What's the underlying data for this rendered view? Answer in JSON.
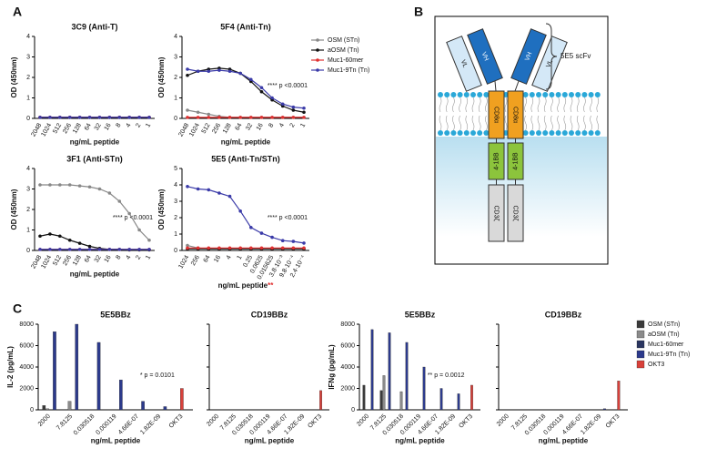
{
  "panels": {
    "a": "A",
    "b": "B",
    "c": "C"
  },
  "diagram": {
    "scfv": "5E5 scFv",
    "vh": "VH",
    "vl": "VL",
    "cd8": "CD8α",
    "bb": "4-1BB",
    "cd3": "CD3ζ"
  },
  "chart_data": [
    {
      "type": "line",
      "title": "3C9 (Anti-T)",
      "ylabel": "OD (450nm)",
      "xlabel": "ng/mL peptide",
      "categories": [
        "2048",
        "1024",
        "512",
        "256",
        "128",
        "64",
        "32",
        "16",
        "8",
        "4",
        "2",
        "1"
      ],
      "ylim": [
        0,
        4
      ],
      "yticks": [
        0,
        1,
        2,
        3,
        4
      ],
      "legend": false,
      "series": [
        {
          "name": "OSM (STn)",
          "color": "#888888",
          "values": [
            0.05,
            0.05,
            0.05,
            0.05,
            0.05,
            0.05,
            0.05,
            0.05,
            0.05,
            0.05,
            0.05,
            0.05
          ]
        },
        {
          "name": "aOSM (Tn)",
          "color": "#111111",
          "values": [
            0.05,
            0.05,
            0.05,
            0.05,
            0.05,
            0.05,
            0.05,
            0.05,
            0.05,
            0.05,
            0.05,
            0.05
          ]
        },
        {
          "name": "Muc1-60mer",
          "color": "#e03030",
          "values": [
            0.05,
            0.05,
            0.05,
            0.05,
            0.05,
            0.05,
            0.05,
            0.05,
            0.05,
            0.05,
            0.05,
            0.05
          ]
        },
        {
          "name": "Muc1-9Tn (Tn)",
          "color": "#3a3aa8",
          "values": [
            0.05,
            0.05,
            0.05,
            0.05,
            0.05,
            0.05,
            0.05,
            0.05,
            0.05,
            0.05,
            0.05,
            0.05
          ]
        }
      ]
    },
    {
      "type": "line",
      "title": "5F4 (Anti-Tn)",
      "ylabel": "OD (450nm)",
      "xlabel": "ng/mL peptide",
      "categories": [
        "2048",
        "1024",
        "512",
        "256",
        "128",
        "64",
        "32",
        "16",
        "8",
        "4",
        "2",
        "1"
      ],
      "ylim": [
        0,
        4
      ],
      "yticks": [
        0,
        1,
        2,
        3,
        4
      ],
      "legend": "right",
      "annotation": "**** p <0.0001",
      "series": [
        {
          "name": "OSM (STn)",
          "color": "#888888",
          "values": [
            0.4,
            0.3,
            0.2,
            0.1,
            0.05,
            0.05,
            0.05,
            0.05,
            0.05,
            0.05,
            0.05,
            0.05
          ]
        },
        {
          "name": "aOSM (Tn)",
          "color": "#111111",
          "values": [
            2.1,
            2.3,
            2.4,
            2.45,
            2.4,
            2.2,
            1.8,
            1.3,
            0.9,
            0.6,
            0.4,
            0.3
          ]
        },
        {
          "name": "Muc1-60mer",
          "color": "#e03030",
          "values": [
            0.05,
            0.05,
            0.05,
            0.05,
            0.05,
            0.05,
            0.05,
            0.05,
            0.05,
            0.05,
            0.05,
            0.05
          ]
        },
        {
          "name": "Muc1-9Tn (Tn)",
          "color": "#3a3aa8",
          "values": [
            2.4,
            2.3,
            2.3,
            2.35,
            2.3,
            2.2,
            1.9,
            1.5,
            1.0,
            0.7,
            0.55,
            0.5
          ]
        }
      ]
    },
    {
      "type": "line",
      "title": "3F1 (Anti-STn)",
      "ylabel": "OD (450nm)",
      "xlabel": "ng/mL peptide",
      "categories": [
        "2048",
        "1024",
        "512",
        "256",
        "128",
        "64",
        "32",
        "16",
        "8",
        "4",
        "2",
        "1"
      ],
      "ylim": [
        0,
        4
      ],
      "yticks": [
        0,
        1,
        2,
        3,
        4
      ],
      "legend": false,
      "annotation": "**** p <0.0001",
      "series": [
        {
          "name": "OSM (STn)",
          "color": "#888888",
          "values": [
            3.2,
            3.2,
            3.2,
            3.2,
            3.15,
            3.1,
            3.0,
            2.8,
            2.4,
            1.8,
            1.0,
            0.5
          ]
        },
        {
          "name": "aOSM (Tn)",
          "color": "#111111",
          "values": [
            0.7,
            0.8,
            0.7,
            0.5,
            0.35,
            0.2,
            0.1,
            0.05,
            0.05,
            0.03,
            0.03,
            0.03
          ]
        },
        {
          "name": "Muc1-60mer",
          "color": "#e03030",
          "values": [
            0.05,
            0.05,
            0.05,
            0.05,
            0.05,
            0.05,
            0.05,
            0.05,
            0.05,
            0.05,
            0.05,
            0.05
          ]
        },
        {
          "name": "Muc1-9Tn (Tn)",
          "color": "#3a3aa8",
          "values": [
            0.05,
            0.05,
            0.05,
            0.05,
            0.05,
            0.05,
            0.05,
            0.05,
            0.05,
            0.05,
            0.05,
            0.05
          ]
        }
      ]
    },
    {
      "type": "line",
      "title": "5E5 (Anti-Tn/STn)",
      "ylabel": "OD (450nm)",
      "xlabel": "ng/mL peptide",
      "xlabel_mark": "**",
      "categories": [
        "1024",
        "256",
        "64",
        "16",
        "4",
        "1",
        "0.25",
        "0.0625",
        "0.015625",
        "3.8·10⁻³",
        "9.8·10⁻⁴",
        "2.4·10⁻⁴"
      ],
      "ylim": [
        0,
        5
      ],
      "yticks": [
        0,
        1,
        2,
        3,
        4,
        5
      ],
      "legend": false,
      "annotation": "**** p <0.0001",
      "series": [
        {
          "name": "OSM (STn)",
          "color": "#888888",
          "values": [
            0.3,
            0.15,
            0.1,
            0.1,
            0.1,
            0.1,
            0.1,
            0.1,
            0.1,
            0.1,
            0.1,
            0.1
          ]
        },
        {
          "name": "aOSM (Tn)",
          "color": "#111111",
          "values": [
            0.1,
            0.1,
            0.1,
            0.1,
            0.1,
            0.1,
            0.1,
            0.1,
            0.1,
            0.1,
            0.1,
            0.1
          ]
        },
        {
          "name": "Muc1-60mer",
          "color": "#e03030",
          "values": [
            0.15,
            0.15,
            0.15,
            0.15,
            0.15,
            0.15,
            0.15,
            0.15,
            0.15,
            0.15,
            0.15,
            0.15
          ]
        },
        {
          "name": "Muc1-9Tn (Tn)",
          "color": "#3a3aa8",
          "values": [
            3.9,
            3.75,
            3.7,
            3.5,
            3.3,
            2.4,
            1.4,
            1.05,
            0.8,
            0.6,
            0.55,
            0.45
          ]
        }
      ]
    },
    {
      "type": "bar",
      "title": "5E5BBz",
      "ylabel": "IL-2 (pg/mL)",
      "xlabel": "ng/mL  peptide",
      "categories": [
        "2000",
        "7.8125",
        "0.030518",
        "0.000119",
        "4.66E-07",
        "1.82E-09",
        "OKT3"
      ],
      "ylim": [
        0,
        8000
      ],
      "yticks": [
        0,
        2000,
        4000,
        6000,
        8000
      ],
      "legend": false,
      "annotation": "* p = 0.0101",
      "series": [
        {
          "name": "OSM (STn)",
          "color": "#3a3a3a",
          "values": [
            400,
            0,
            0,
            0,
            0,
            0,
            null
          ]
        },
        {
          "name": "aOSM (Tn)",
          "color": "#8a8a8a",
          "values": [
            100,
            800,
            0,
            0,
            0,
            0,
            null
          ]
        },
        {
          "name": "Muc1-60mer",
          "color": "#2a3560",
          "values": [
            0,
            0,
            0,
            0,
            0,
            0,
            null
          ]
        },
        {
          "name": "Muc1-9Tn (Tn)",
          "color": "#2c3a8c",
          "values": [
            7300,
            8000,
            6300,
            2800,
            800,
            300,
            null
          ]
        },
        {
          "name": "OKT3",
          "color": "#d8403a",
          "values": [
            null,
            null,
            null,
            null,
            null,
            null,
            2000
          ]
        }
      ]
    },
    {
      "type": "bar",
      "title": "CD19BBz",
      "xlabel": "ng/mL  peptide",
      "categories": [
        "2000",
        "7.8125",
        "0.030518",
        "0.000119",
        "4.66E-07",
        "1.82E-09",
        "OKT3"
      ],
      "ylim": [
        0,
        8000
      ],
      "yticks": [
        0,
        2000,
        4000,
        6000,
        8000
      ],
      "ytick_labels": false,
      "legend": false,
      "series": [
        {
          "name": "OSM (STn)",
          "color": "#3a3a3a",
          "values": [
            0,
            0,
            0,
            0,
            0,
            0,
            null
          ]
        },
        {
          "name": "aOSM (Tn)",
          "color": "#8a8a8a",
          "values": [
            0,
            0,
            0,
            0,
            0,
            0,
            null
          ]
        },
        {
          "name": "Muc1-60mer",
          "color": "#2a3560",
          "values": [
            0,
            0,
            0,
            0,
            0,
            0,
            null
          ]
        },
        {
          "name": "Muc1-9Tn (Tn)",
          "color": "#2c3a8c",
          "values": [
            0,
            0,
            0,
            0,
            0,
            0,
            null
          ]
        },
        {
          "name": "OKT3",
          "color": "#d8403a",
          "values": [
            null,
            null,
            null,
            null,
            null,
            null,
            1800
          ]
        }
      ]
    },
    {
      "type": "bar",
      "title": "5E5BBz",
      "ylabel": "IFNg (pg/mL)",
      "xlabel": "ng/mL  peptide",
      "categories": [
        "2000",
        "7.8125",
        "0.030518",
        "0.000119",
        "4.66E-07",
        "1.82E-09",
        "OKT3"
      ],
      "ylim": [
        0,
        8000
      ],
      "yticks": [
        0,
        2000,
        4000,
        6000,
        8000
      ],
      "legend": false,
      "annotation": "** p = 0.0012",
      "series": [
        {
          "name": "OSM (STn)",
          "color": "#3a3a3a",
          "values": [
            2300,
            1800,
            0,
            0,
            0,
            0,
            null
          ]
        },
        {
          "name": "aOSM (Tn)",
          "color": "#8a8a8a",
          "values": [
            0,
            3200,
            1700,
            0,
            0,
            0,
            null
          ]
        },
        {
          "name": "Muc1-60mer",
          "color": "#2a3560",
          "values": [
            0,
            0,
            0,
            0,
            0,
            0,
            null
          ]
        },
        {
          "name": "Muc1-9Tn (Tn)",
          "color": "#2c3a8c",
          "values": [
            7500,
            7200,
            6300,
            4000,
            2000,
            1500,
            null
          ]
        },
        {
          "name": "OKT3",
          "color": "#d8403a",
          "values": [
            null,
            null,
            null,
            null,
            null,
            null,
            2300
          ]
        }
      ]
    },
    {
      "type": "bar",
      "title": "CD19BBz",
      "xlabel": "ng/mL  peptide",
      "categories": [
        "2000",
        "7.8125",
        "0.030518",
        "0.000119",
        "4.66E-07",
        "1.82E-09",
        "OKT3"
      ],
      "ylim": [
        0,
        8000
      ],
      "yticks": [
        0,
        2000,
        4000,
        6000,
        8000
      ],
      "ytick_labels": false,
      "legend": "right",
      "series": [
        {
          "name": "OSM (STn)",
          "color": "#3a3a3a",
          "values": [
            0,
            0,
            0,
            0,
            0,
            0,
            null
          ]
        },
        {
          "name": "aOSM (Tn)",
          "color": "#8a8a8a",
          "values": [
            0,
            0,
            0,
            0,
            0,
            0,
            null
          ]
        },
        {
          "name": "Muc1-60mer",
          "color": "#2a3560",
          "values": [
            0,
            0,
            0,
            0,
            0,
            0,
            null
          ]
        },
        {
          "name": "Muc1-9Tn (Tn)",
          "color": "#2c3a8c",
          "values": [
            0,
            0,
            0,
            0,
            0,
            100,
            null
          ]
        },
        {
          "name": "OKT3",
          "color": "#d8403a",
          "values": [
            null,
            null,
            null,
            null,
            null,
            null,
            2700
          ]
        }
      ]
    }
  ]
}
